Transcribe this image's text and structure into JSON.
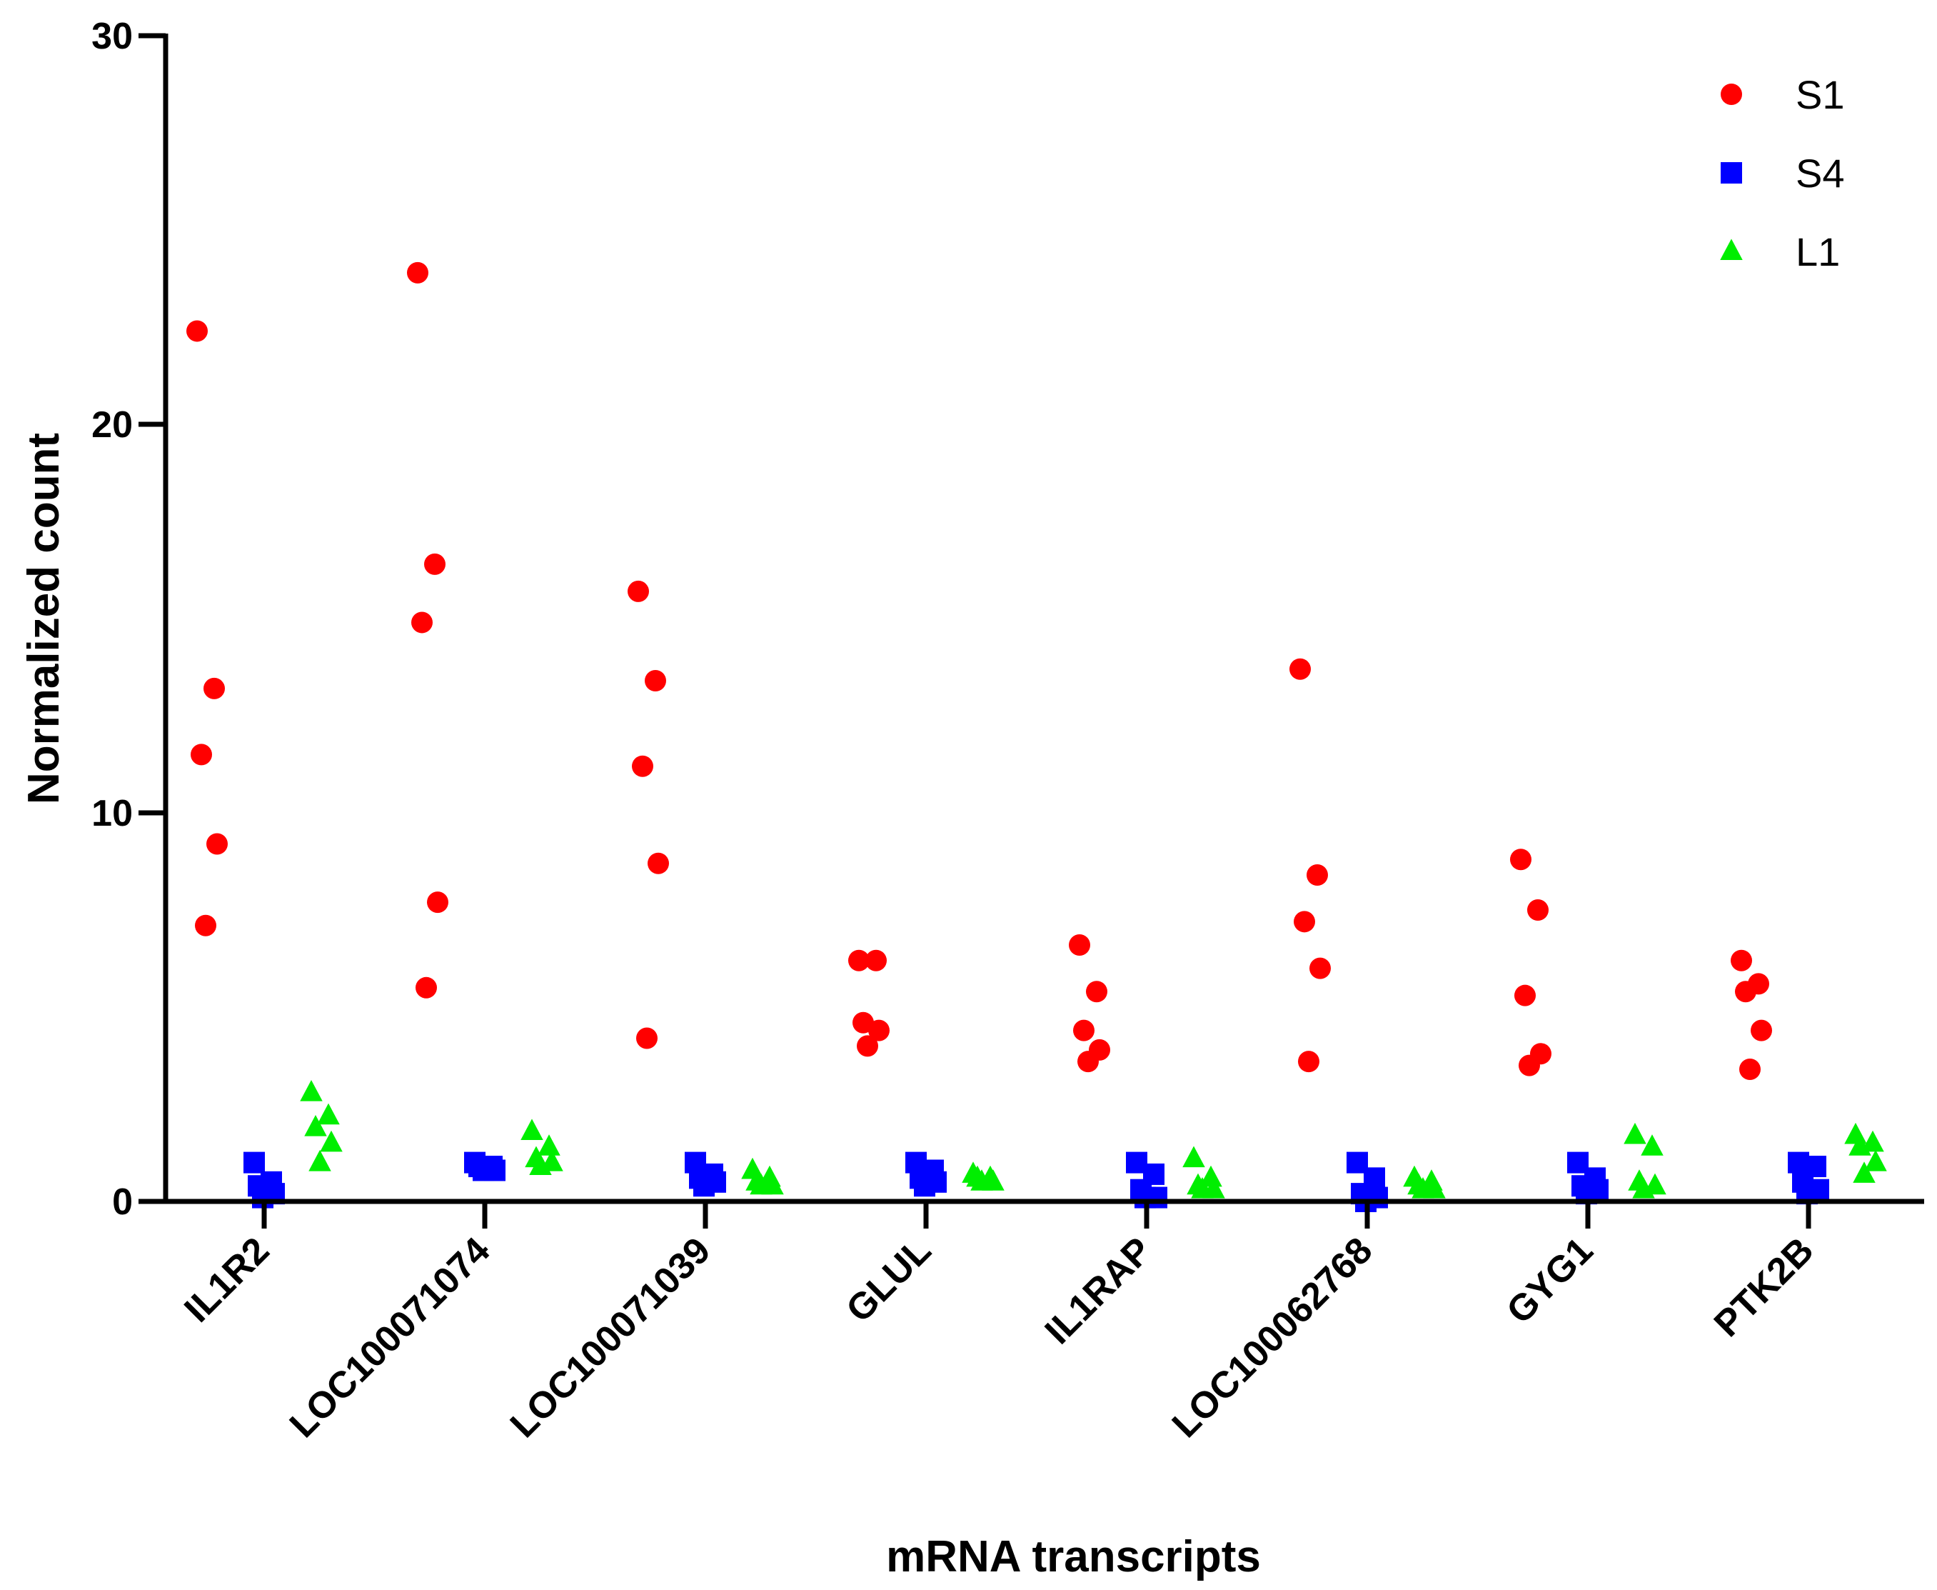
{
  "chart_data": {
    "type": "scatter",
    "title": "",
    "xlabel": "mRNA transcripts",
    "ylabel": "Normalized count",
    "ylim": [
      0,
      30
    ],
    "yticks": [
      0,
      10,
      20,
      30
    ],
    "yticks_text": [
      "0",
      "10",
      "20",
      "30"
    ],
    "grid": false,
    "legend_position": "top-right",
    "categories": [
      "IL1R2",
      "LOC100071074",
      "LOC100071039",
      "GLUL",
      "IL1RAP",
      "LOC100062768",
      "GYG1",
      "PTK2B"
    ],
    "series": [
      {
        "name": "S1",
        "marker": "circle",
        "color": "#ff0000",
        "values": [
          [
            22.4,
            13.2,
            11.5,
            9.2,
            7.1
          ],
          [
            23.9,
            16.4,
            14.9,
            7.7,
            5.5
          ],
          [
            15.7,
            13.4,
            11.2,
            8.7,
            4.2
          ],
          [
            6.2,
            6.2,
            4.6,
            4.4,
            4.0
          ],
          [
            6.6,
            5.4,
            4.4,
            3.9,
            3.6
          ],
          [
            13.7,
            8.4,
            7.2,
            6.0,
            3.6
          ],
          [
            8.8,
            7.5,
            5.3,
            3.8,
            3.5
          ],
          [
            6.2,
            5.6,
            5.4,
            4.4,
            3.4
          ]
        ]
      },
      {
        "name": "S4",
        "marker": "square",
        "color": "#0000ff",
        "values": [
          [
            1.0,
            0.5,
            0.4,
            0.2,
            0.1
          ],
          [
            1.0,
            0.9,
            0.9,
            0.8,
            0.8
          ],
          [
            1.0,
            0.7,
            0.6,
            0.5,
            0.4
          ],
          [
            1.0,
            0.8,
            0.6,
            0.5,
            0.4
          ],
          [
            1.0,
            0.7,
            0.3,
            0.1,
            0.1
          ],
          [
            1.0,
            0.6,
            0.2,
            0.1,
            0.0
          ],
          [
            1.0,
            0.6,
            0.4,
            0.3,
            0.2
          ],
          [
            1.0,
            0.9,
            0.5,
            0.3,
            0.2
          ]
        ]
      },
      {
        "name": "L1",
        "marker": "triangle",
        "color": "#00ee00",
        "values": [
          [
            2.8,
            2.2,
            1.9,
            1.5,
            1.0
          ],
          [
            1.8,
            1.4,
            1.1,
            1.0,
            0.9
          ],
          [
            0.8,
            0.6,
            0.5,
            0.4,
            0.4
          ],
          [
            0.7,
            0.6,
            0.6,
            0.5,
            0.5
          ],
          [
            1.1,
            0.6,
            0.4,
            0.3,
            0.3
          ],
          [
            0.6,
            0.5,
            0.4,
            0.3,
            0.3
          ],
          [
            1.7,
            1.4,
            0.5,
            0.4,
            0.3
          ],
          [
            1.7,
            1.5,
            1.4,
            1.0,
            0.7
          ]
        ]
      }
    ]
  }
}
